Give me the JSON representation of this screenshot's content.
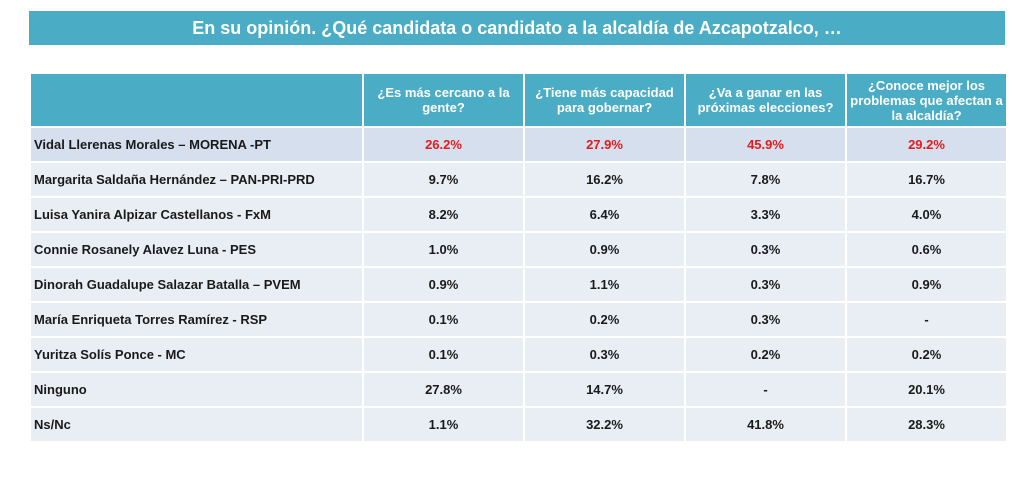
{
  "title": "En su opinión. ¿Qué candidata o candidato a la alcaldía de Azcapotzalco, …",
  "highlight_color": "#e8191b",
  "chart_data": {
    "type": "table",
    "columns": [
      "",
      "¿Es más cercano a la gente?",
      "¿Tiene más capacidad para gobernar?",
      "¿Va a ganar en las próximas elecciones?",
      "¿Conoce mejor los problemas que afectan a la alcaldía?"
    ],
    "rows": [
      {
        "name": "Vidal Llerenas Morales – MORENA -PT",
        "values": [
          "26.2%",
          "27.9%",
          "45.9%",
          "29.2%"
        ]
      },
      {
        "name": "Margarita Saldaña Hernández – PAN-PRI-PRD",
        "values": [
          "9.7%",
          "16.2%",
          "7.8%",
          "16.7%"
        ]
      },
      {
        "name": "Luisa Yanira Alpizar Castellanos - FxM",
        "values": [
          "8.2%",
          "6.4%",
          "3.3%",
          "4.0%"
        ]
      },
      {
        "name": "Connie Rosanely Alavez Luna - PES",
        "values": [
          "1.0%",
          "0.9%",
          "0.3%",
          "0.6%"
        ]
      },
      {
        "name": "Dinorah Guadalupe Salazar Batalla – PVEM",
        "values": [
          "0.9%",
          "1.1%",
          "0.3%",
          "0.9%"
        ]
      },
      {
        "name": "María Enriqueta Torres Ramírez - RSP",
        "values": [
          "0.1%",
          "0.2%",
          "0.3%",
          "-"
        ]
      },
      {
        "name": "Yuritza Solís Ponce - MC",
        "values": [
          "0.1%",
          "0.3%",
          "0.2%",
          "0.2%"
        ]
      },
      {
        "name": "Ninguno",
        "values": [
          "27.8%",
          "14.7%",
          "-",
          "20.1%"
        ]
      },
      {
        "name": "Ns/Nc",
        "values": [
          "1.1%",
          "32.2%",
          "41.8%",
          "28.3%"
        ]
      }
    ]
  }
}
